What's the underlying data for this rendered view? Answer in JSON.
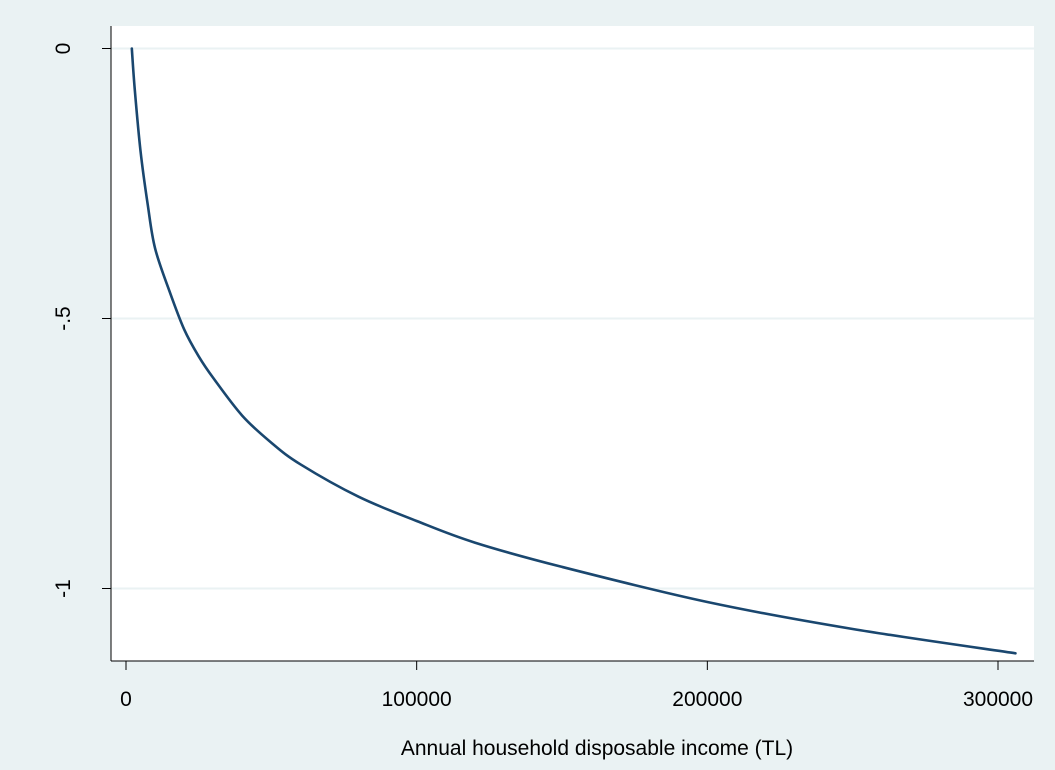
{
  "chart_data": {
    "type": "line",
    "title": "",
    "xlabel": "Annual household disposable income (TL)",
    "ylabel": "",
    "xlim": [
      0,
      306000
    ],
    "ylim": [
      -1.13,
      0
    ],
    "xticks": [
      {
        "value": 0,
        "label": "0"
      },
      {
        "value": 100000,
        "label": "100000"
      },
      {
        "value": 200000,
        "label": "200000"
      },
      {
        "value": 300000,
        "label": "300000"
      }
    ],
    "yticks": [
      {
        "value": 0,
        "label": "0"
      },
      {
        "value": -0.5,
        "label": "-.5"
      },
      {
        "value": -1,
        "label": "-1"
      }
    ],
    "grid": "horizontal",
    "legend": "none",
    "series": [
      {
        "color": "#1a476f",
        "x": [
          2000,
          3000,
          5000,
          7500,
          10000,
          15000,
          20000,
          25000,
          30000,
          40000,
          50000,
          60000,
          80000,
          100000,
          120000,
          150000,
          200000,
          250000,
          306000
        ],
        "y": [
          0.0,
          -0.075,
          -0.19,
          -0.29,
          -0.37,
          -0.45,
          -0.52,
          -0.57,
          -0.61,
          -0.68,
          -0.73,
          -0.77,
          -0.83,
          -0.875,
          -0.915,
          -0.96,
          -1.025,
          -1.075,
          -1.12
        ]
      }
    ]
  },
  "colors": {
    "background": "#eaf2f3",
    "plot_area": "#ffffff",
    "gridline": "#eaf2f3",
    "line": "#1a476f"
  }
}
